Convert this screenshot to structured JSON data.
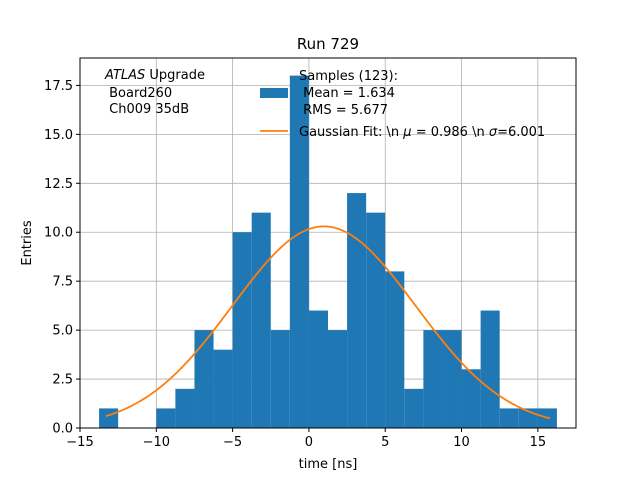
{
  "chart_data": {
    "type": "bar",
    "title": "Run 729",
    "xlabel": "time [ns]",
    "ylabel": "Entries",
    "xlim": [
      -15,
      17.5
    ],
    "ylim": [
      0,
      18.9
    ],
    "grid": true,
    "x_ticks": [
      -15,
      -10,
      -5,
      0,
      5,
      10,
      15
    ],
    "x_tick_labels": [
      "−15",
      "−10",
      "−5",
      "0",
      "5",
      "10",
      "15"
    ],
    "y_ticks": [
      0,
      2.5,
      5,
      7.5,
      10,
      12.5,
      15,
      17.5
    ],
    "y_tick_labels": [
      "0.0",
      "2.5",
      "5.0",
      "7.5",
      "10.0",
      "12.5",
      "15.0",
      "17.5"
    ],
    "bin_width": 1.25,
    "bin_start": -13.75,
    "counts": [
      1,
      0,
      0,
      1,
      2,
      5,
      4,
      10,
      11,
      5,
      18,
      6,
      5,
      12,
      11,
      8,
      2,
      5,
      5,
      3,
      6,
      1,
      1,
      1
    ],
    "fit": {
      "amplitude": 10.3,
      "mu": 0.986,
      "sigma": 6.001,
      "x_range": [
        -13.3,
        15.8
      ]
    },
    "colors": {
      "bars": "#1f77b4",
      "fit": "#ff7f0e",
      "grid": "#b0b0b0"
    },
    "annotation": {
      "italic": "ATLAS",
      "line1_rest": " Upgrade",
      "line2": " Board260",
      "line3": " Ch009 35dB"
    },
    "legend": {
      "position": "top-right",
      "samples_line1": "Samples (123):",
      "samples_line2": " Mean = 1.634",
      "samples_line3": " RMS = 5.677",
      "fit_label": "Gaussian Fit: \\n $\\mu$ = 0.986 \\n $\\sigma$=6.001",
      "fit_label_prefix": "Gaussian Fit: \\n ",
      "fit_label_mu": "μ",
      "fit_label_middle": " = 0.986 \\n ",
      "fit_label_sigma": "σ",
      "fit_label_suffix": "=6.001"
    }
  }
}
